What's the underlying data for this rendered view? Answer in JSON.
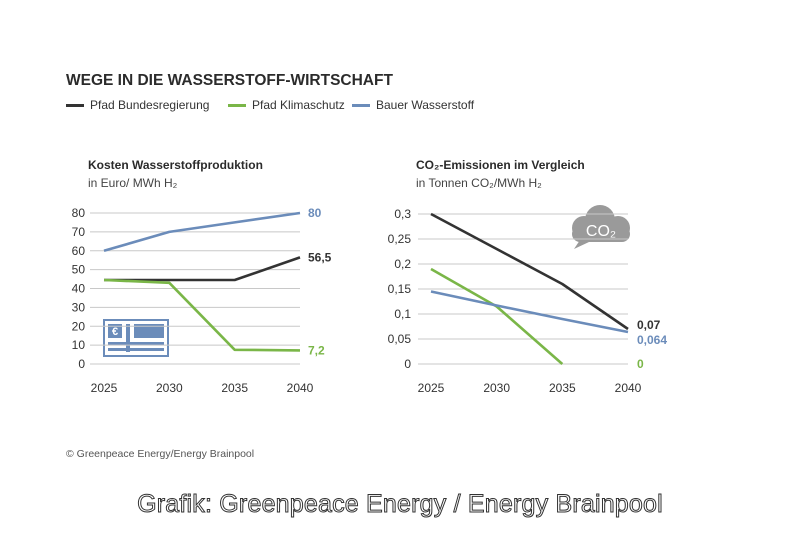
{
  "title": "WEGE IN DIE WASSERSTOFF-WIRTSCHAFT",
  "legend": [
    {
      "label": "Pfad Bundesregierung",
      "color": "#333333"
    },
    {
      "label": "Pfad Klimaschutz",
      "color": "#7ab648"
    },
    {
      "label": "Bauer Wasserstoff",
      "color": "#6b8cba"
    }
  ],
  "chart_data": [
    {
      "type": "line",
      "title": "Kosten Wasserstoffproduktion",
      "subtitle": "in Euro/ MWh H₂",
      "x": [
        2025,
        2030,
        2035,
        2040
      ],
      "ylim": [
        0,
        80
      ],
      "yticks": [
        "80",
        "70",
        "60",
        "50",
        "40",
        "30",
        "20",
        "10",
        "0"
      ],
      "xticks": [
        "2025",
        "2030",
        "2035",
        "2040"
      ],
      "series": [
        {
          "name": "Pfad Bundesregierung",
          "values": [
            44.5,
            44.5,
            44.5,
            56.5
          ],
          "end_label": "56,5",
          "color": "#333333"
        },
        {
          "name": "Pfad Klimaschutz",
          "values": [
            44.5,
            43,
            7.5,
            7.2
          ],
          "end_label": "7,2",
          "color": "#7ab648"
        },
        {
          "name": "Bauer Wasserstoff",
          "values": [
            60,
            70,
            75,
            80
          ],
          "end_label": "80",
          "color": "#6b8cba"
        }
      ],
      "icon": "euro-banknote-icon"
    },
    {
      "type": "line",
      "title": "CO₂-Emissionen im Vergleich",
      "subtitle": "in Tonnen CO₂/MWh H₂",
      "x": [
        2025,
        2030,
        2035,
        2040
      ],
      "ylim": [
        0,
        0.3
      ],
      "yticks": [
        "0,3",
        "0,25",
        "0,2",
        "0,15",
        "0,1",
        "0,05",
        "0"
      ],
      "xticks": [
        "2025",
        "2030",
        "2035",
        "2040"
      ],
      "series": [
        {
          "name": "Pfad Bundesregierung",
          "values": [
            0.3,
            0.23,
            0.16,
            0.07
          ],
          "end_label": "0,07",
          "color": "#333333"
        },
        {
          "name": "Pfad Klimaschutz",
          "values": [
            0.19,
            0.115,
            0.0,
            null
          ],
          "end_label": "0",
          "color": "#7ab648"
        },
        {
          "name": "Bauer Wasserstoff",
          "values": [
            0.145,
            0.117,
            0.09,
            0.064
          ],
          "end_label": "0,064",
          "color": "#6b8cba"
        }
      ],
      "icon": "co2-cloud-icon",
      "icon_text": "CO₂"
    }
  ],
  "credit": "© Greenpeace Energy/Energy Brainpool",
  "footer": "Grafik: Greenpeace Energy / Energy Brainpool"
}
